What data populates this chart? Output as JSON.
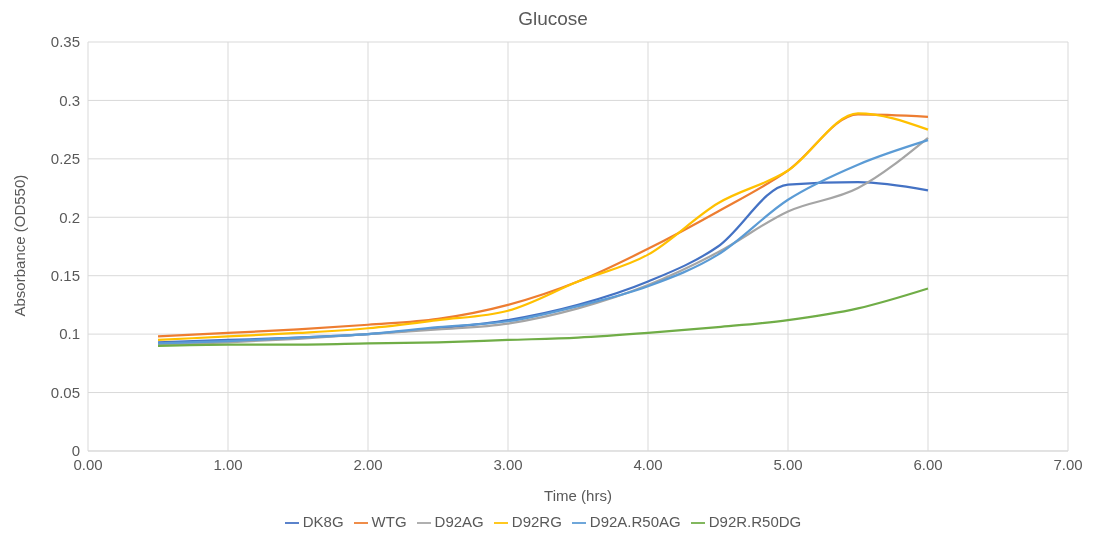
{
  "chart_data": {
    "type": "line",
    "title": "Glucose",
    "xlabel": "Time (hrs)",
    "ylabel": "Absorbance (OD550)",
    "x": [
      0.5,
      1,
      1.5,
      2,
      2.5,
      3,
      3.5,
      4,
      4.5,
      5,
      5.5,
      6
    ],
    "series": [
      {
        "name": "DK8G",
        "color": "#4472c4",
        "values": [
          0.093,
          0.095,
          0.097,
          0.1,
          0.105,
          0.112,
          0.125,
          0.145,
          0.175,
          0.228,
          0.23,
          0.223
        ]
      },
      {
        "name": "WTG",
        "color": "#ed7d31",
        "values": [
          0.098,
          0.101,
          0.104,
          0.108,
          0.113,
          0.125,
          0.145,
          0.173,
          0.205,
          0.24,
          0.288,
          0.286
        ]
      },
      {
        "name": "D92AG",
        "color": "#a5a5a5",
        "values": [
          0.091,
          0.093,
          0.096,
          0.1,
          0.104,
          0.109,
          0.122,
          0.142,
          0.17,
          0.205,
          0.225,
          0.268
        ]
      },
      {
        "name": "D92RG",
        "color": "#ffc000",
        "values": [
          0.095,
          0.098,
          0.101,
          0.105,
          0.112,
          0.12,
          0.145,
          0.168,
          0.212,
          0.24,
          0.289,
          0.275
        ]
      },
      {
        "name": "D92A.R50AG",
        "color": "#5b9bd5",
        "values": [
          0.092,
          0.094,
          0.097,
          0.1,
          0.106,
          0.111,
          0.124,
          0.141,
          0.168,
          0.215,
          0.245,
          0.266
        ]
      },
      {
        "name": "D92R.R50DG",
        "color": "#70ad47",
        "values": [
          0.09,
          0.091,
          0.091,
          0.092,
          0.093,
          0.095,
          0.097,
          0.101,
          0.106,
          0.112,
          0.122,
          0.139
        ]
      }
    ],
    "xlim": [
      0,
      7
    ],
    "xticks": [
      {
        "value": 0,
        "label": "0.00"
      },
      {
        "value": 1,
        "label": "1.00"
      },
      {
        "value": 2,
        "label": "2.00"
      },
      {
        "value": 3,
        "label": "3.00"
      },
      {
        "value": 4,
        "label": "4.00"
      },
      {
        "value": 5,
        "label": "5.00"
      },
      {
        "value": 6,
        "label": "6.00"
      },
      {
        "value": 7,
        "label": "7.00"
      }
    ],
    "ylim": [
      0,
      0.35
    ],
    "yticks": [
      0,
      0.05,
      0.1,
      0.15,
      0.2,
      0.25,
      0.3,
      0.35
    ],
    "grid": true,
    "legend": "bottom",
    "marker": "none",
    "line_style": "solid"
  }
}
